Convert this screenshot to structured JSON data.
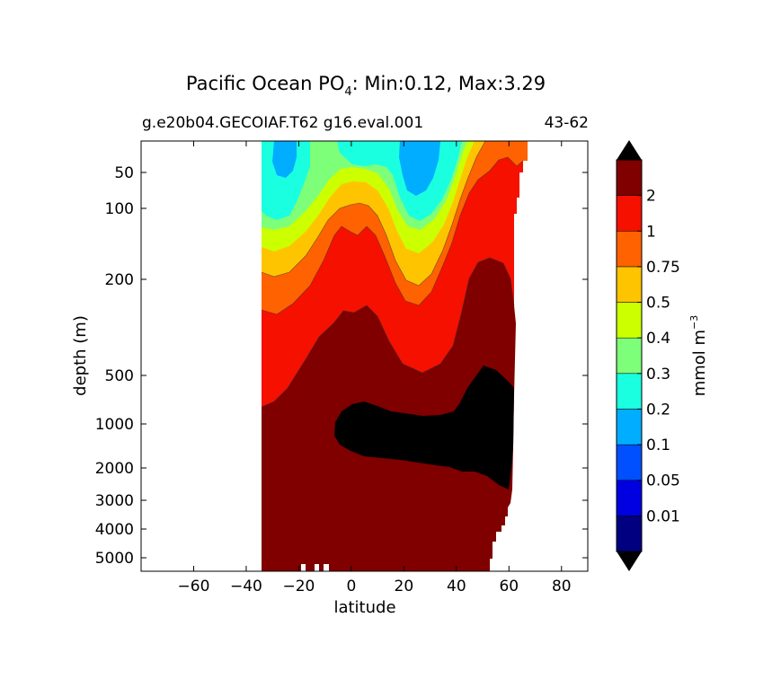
{
  "chart_data": {
    "type": "heatmap",
    "title": "Pacific Ocean PO",
    "title_subscript": "4",
    "title_suffix": ": Min:0.12, Max:3.29",
    "subtitle_left": "g.e20b04.GECOIAF.T62 g16.eval.001",
    "subtitle_right": "43-62",
    "xlabel": "latitude",
    "ylabel": "depth (m)",
    "xlim": [
      -80,
      90
    ],
    "ylim": [
      6000,
      0
    ],
    "x_ticks": [
      -60,
      -40,
      -20,
      0,
      20,
      40,
      60,
      80
    ],
    "x_tick_labels": [
      "−60",
      "−40",
      "−20",
      "0",
      "20",
      "40",
      "60",
      "80"
    ],
    "y_ticks": [
      50,
      100,
      200,
      500,
      1000,
      2000,
      3000,
      4000,
      5000
    ],
    "y_tick_labels": [
      "50",
      "100",
      "200",
      "500",
      "1000",
      "2000",
      "3000",
      "4000",
      "5000"
    ],
    "colorbar": {
      "label": "mmol m",
      "label_sup": "−3",
      "levels": [
        0.01,
        0.05,
        0.1,
        0.2,
        0.3,
        0.4,
        0.5,
        0.75,
        1,
        2
      ],
      "level_labels": [
        "0.01",
        "0.05",
        "0.1",
        "0.2",
        "0.3",
        "0.4",
        "0.5",
        "0.75",
        "1",
        "2"
      ],
      "colors": [
        "#000080",
        "#0000e0",
        "#0050ff",
        "#00adff",
        "#19ffe0",
        "#7dff7a",
        "#ccff00",
        "#ffc400",
        "#ff6200",
        "#f51000",
        "#800000"
      ],
      "under_color": "#000000",
      "over_color": "#000000"
    },
    "data_extent_lat": [
      -34,
      67
    ],
    "max_region_color": "#000000",
    "field_min": 0.12,
    "field_max": 3.29
  }
}
